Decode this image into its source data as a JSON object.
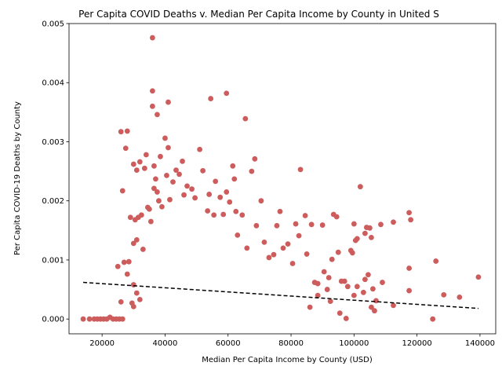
{
  "chart_data": {
    "type": "scatter",
    "title": "Per Capita COVID Deaths v. Median Per Capita Income by County in United S",
    "xlabel": "Median Per Capita Income by County (USD)",
    "ylabel": "Per Capita COVID-19 Deaths by County",
    "xlim": [
      9500,
      145000
    ],
    "ylim": [
      -0.00025,
      0.005
    ],
    "xticks": [
      20000,
      40000,
      60000,
      80000,
      100000,
      120000,
      140000
    ],
    "xtick_labels": [
      "20000",
      "40000",
      "60000",
      "80000",
      "100000",
      "120000",
      "140000"
    ],
    "yticks": [
      0.0,
      0.001,
      0.002,
      0.003,
      0.004,
      0.005
    ],
    "ytick_labels": [
      "0.000",
      "0.001",
      "0.002",
      "0.003",
      "0.004",
      "0.005"
    ],
    "grid": false,
    "point_color": "#cd5c5c",
    "trend_line": {
      "style": "dashed",
      "color": "#000000",
      "x": [
        14000,
        139500
      ],
      "y": [
        0.00062,
        0.00018
      ]
    },
    "points": [
      [
        14000,
        0.0
      ],
      [
        16000,
        0.0
      ],
      [
        17500,
        0.0
      ],
      [
        18500,
        0.0
      ],
      [
        19500,
        0.0
      ],
      [
        20500,
        0.0
      ],
      [
        21500,
        0.0
      ],
      [
        22500,
        3e-05
      ],
      [
        23500,
        0.0
      ],
      [
        24500,
        0.0
      ],
      [
        25500,
        0.0
      ],
      [
        26500,
        0.0
      ],
      [
        25000,
        0.00089
      ],
      [
        26000,
        0.00029
      ],
      [
        26500,
        0.00217
      ],
      [
        26000,
        0.00317
      ],
      [
        27500,
        0.00289
      ],
      [
        28000,
        0.00318
      ],
      [
        27000,
        0.00096
      ],
      [
        28500,
        0.00097
      ],
      [
        28000,
        0.00076
      ],
      [
        29000,
        0.00172
      ],
      [
        30000,
        0.00262
      ],
      [
        31000,
        0.00252
      ],
      [
        32000,
        0.00266
      ],
      [
        30500,
        0.00168
      ],
      [
        31500,
        0.00172
      ],
      [
        32500,
        0.00176
      ],
      [
        30000,
        0.00128
      ],
      [
        31000,
        0.00134
      ],
      [
        30000,
        0.00058
      ],
      [
        31000,
        0.00044
      ],
      [
        29500,
        0.00027
      ],
      [
        30000,
        0.00021
      ],
      [
        32000,
        0.00033
      ],
      [
        33000,
        0.00118
      ],
      [
        33500,
        0.00255
      ],
      [
        34000,
        0.00278
      ],
      [
        34500,
        0.00189
      ],
      [
        35000,
        0.00186
      ],
      [
        35500,
        0.00165
      ],
      [
        36000,
        0.00476
      ],
      [
        36000,
        0.00386
      ],
      [
        36000,
        0.0036
      ],
      [
        37500,
        0.00346
      ],
      [
        36500,
        0.00259
      ],
      [
        37000,
        0.00237
      ],
      [
        36500,
        0.00221
      ],
      [
        37500,
        0.00215
      ],
      [
        38500,
        0.00275
      ],
      [
        38000,
        0.002
      ],
      [
        39000,
        0.0019
      ],
      [
        40000,
        0.00306
      ],
      [
        41000,
        0.00367
      ],
      [
        41000,
        0.0029
      ],
      [
        40500,
        0.00243
      ],
      [
        41500,
        0.00202
      ],
      [
        42500,
        0.00232
      ],
      [
        43500,
        0.00252
      ],
      [
        44500,
        0.00245
      ],
      [
        45500,
        0.00267
      ],
      [
        46000,
        0.0021
      ],
      [
        47000,
        0.00225
      ],
      [
        48500,
        0.0022
      ],
      [
        49500,
        0.00205
      ],
      [
        51000,
        0.00287
      ],
      [
        52000,
        0.00251
      ],
      [
        53500,
        0.00183
      ],
      [
        54000,
        0.00211
      ],
      [
        54500,
        0.00373
      ],
      [
        55500,
        0.00176
      ],
      [
        56000,
        0.00233
      ],
      [
        57500,
        0.00206
      ],
      [
        58500,
        0.00177
      ],
      [
        59500,
        0.00382
      ],
      [
        59500,
        0.00215
      ],
      [
        60500,
        0.00198
      ],
      [
        61500,
        0.00259
      ],
      [
        62000,
        0.00237
      ],
      [
        62500,
        0.00182
      ],
      [
        63000,
        0.00142
      ],
      [
        64500,
        0.00176
      ],
      [
        65500,
        0.00339
      ],
      [
        66000,
        0.0012
      ],
      [
        67500,
        0.0025
      ],
      [
        68500,
        0.00271
      ],
      [
        69000,
        0.00158
      ],
      [
        70500,
        0.002
      ],
      [
        71500,
        0.0013
      ],
      [
        73000,
        0.00104
      ],
      [
        74500,
        0.00109
      ],
      [
        75500,
        0.00158
      ],
      [
        76500,
        0.00182
      ],
      [
        77500,
        0.0012
      ],
      [
        79000,
        0.00127
      ],
      [
        80500,
        0.00094
      ],
      [
        81500,
        0.00161
      ],
      [
        82500,
        0.00141
      ],
      [
        83000,
        0.00253
      ],
      [
        84500,
        0.00175
      ],
      [
        85000,
        0.0011
      ],
      [
        86500,
        0.0016
      ],
      [
        87500,
        0.00062
      ],
      [
        88500,
        0.0006
      ],
      [
        90000,
        0.00159
      ],
      [
        92000,
        0.0007
      ],
      [
        93000,
        0.00101
      ],
      [
        93500,
        0.00177
      ],
      [
        94500,
        0.00173
      ],
      [
        95000,
        0.00113
      ],
      [
        96000,
        0.00064
      ],
      [
        97000,
        0.00064
      ],
      [
        98000,
        0.00055
      ],
      [
        99000,
        0.00116
      ],
      [
        99500,
        0.00112
      ],
      [
        100000,
        0.00161
      ],
      [
        100500,
        0.00133
      ],
      [
        101000,
        0.00136
      ],
      [
        102000,
        0.00224
      ],
      [
        103500,
        0.00145
      ],
      [
        104000,
        0.00155
      ],
      [
        105000,
        0.00154
      ],
      [
        105500,
        0.00138
      ],
      [
        106000,
        0.00051
      ],
      [
        107000,
        0.00031
      ],
      [
        108500,
        0.0016
      ],
      [
        109000,
        0.00062
      ],
      [
        112500,
        0.00164
      ],
      [
        117500,
        0.0018
      ],
      [
        118000,
        0.00168
      ],
      [
        117500,
        0.00086
      ],
      [
        117500,
        0.00048
      ],
      [
        125000,
        0.0
      ],
      [
        126000,
        0.00098
      ],
      [
        128500,
        0.00041
      ],
      [
        133500,
        0.00037
      ],
      [
        139500,
        0.00071
      ],
      [
        103500,
        0.00067
      ],
      [
        104500,
        0.00075
      ],
      [
        105500,
        0.0002
      ],
      [
        106500,
        0.00014
      ],
      [
        112500,
        0.00023
      ],
      [
        95500,
        0.0001
      ],
      [
        97500,
        1e-05
      ],
      [
        100000,
        0.0004
      ],
      [
        101000,
        0.00055
      ],
      [
        103000,
        0.00045
      ],
      [
        88500,
        0.0004
      ],
      [
        90500,
        0.0008
      ],
      [
        91500,
        0.0005
      ],
      [
        92500,
        0.0003
      ],
      [
        86000,
        0.0002
      ]
    ]
  }
}
